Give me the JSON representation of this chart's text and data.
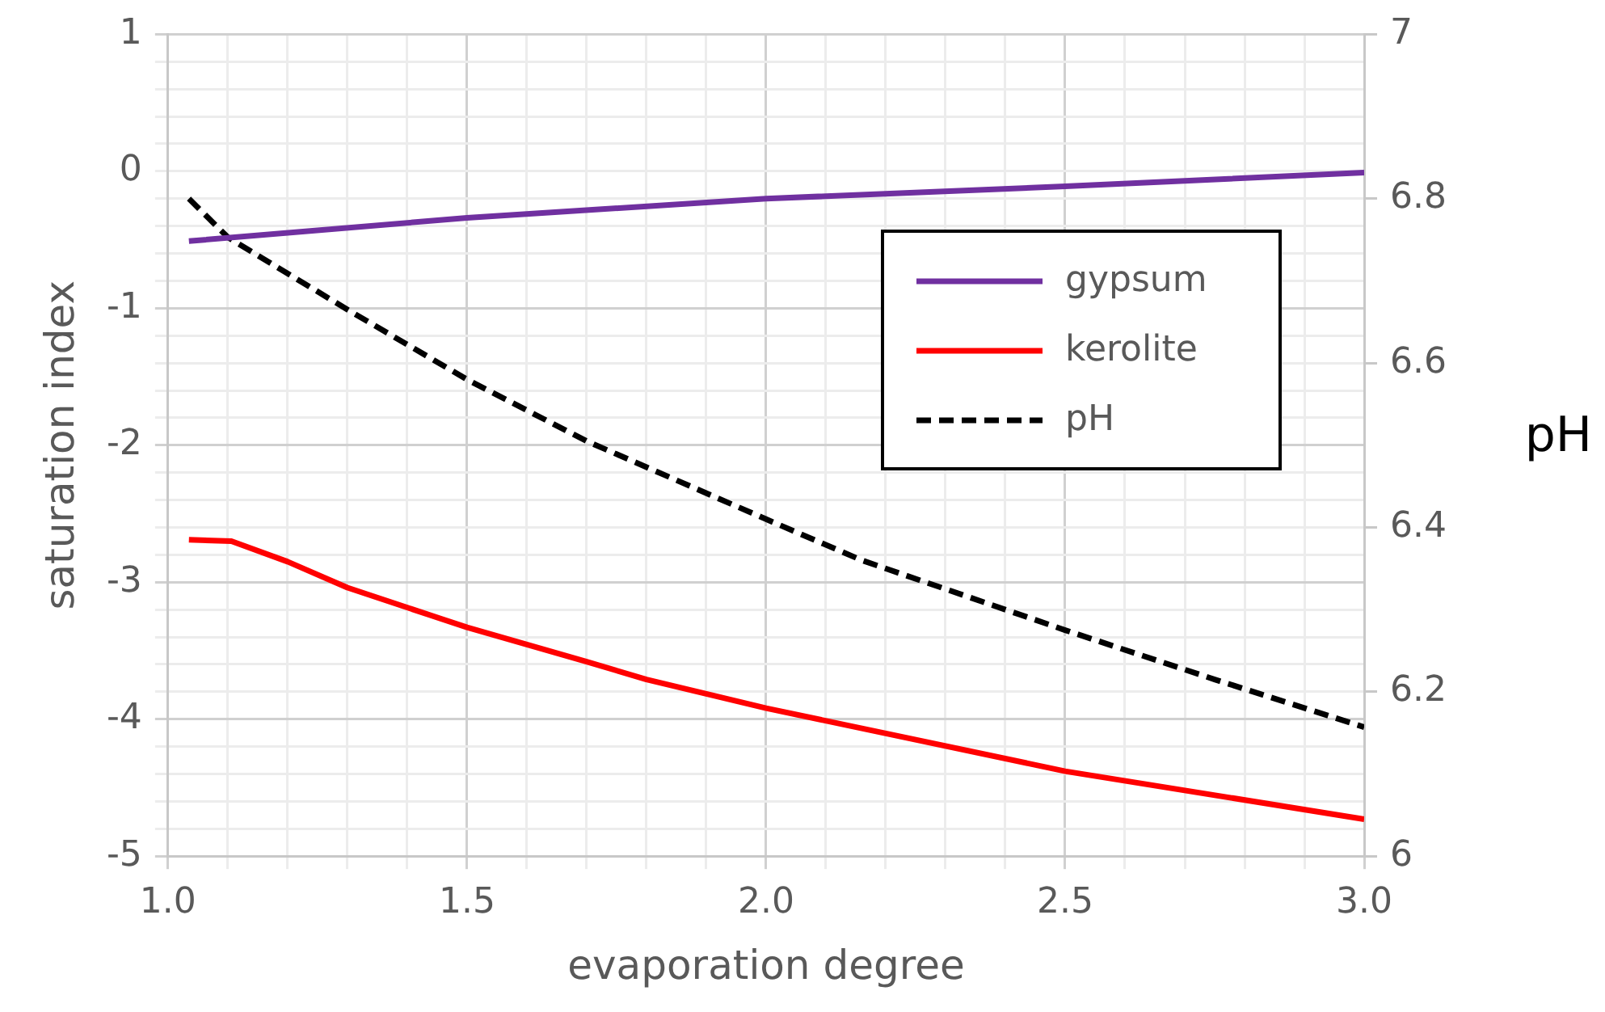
{
  "chart_data": {
    "type": "line",
    "xlabel": "evaporation degree",
    "ylabel": "saturation index",
    "y2label": "pH",
    "xlim": [
      1.0,
      3.0
    ],
    "xticks": [
      {
        "value": 1.0,
        "label": "1.0"
      },
      {
        "value": 1.1,
        "label": null
      },
      {
        "value": 1.2,
        "label": null
      },
      {
        "value": 1.3,
        "label": null
      },
      {
        "value": 1.4,
        "label": null
      },
      {
        "value": 1.5,
        "label": "1.5"
      },
      {
        "value": 1.6,
        "label": null
      },
      {
        "value": 1.7,
        "label": null
      },
      {
        "value": 1.8,
        "label": null
      },
      {
        "value": 1.9,
        "label": null
      },
      {
        "value": 2.0,
        "label": "2.0"
      },
      {
        "value": 2.1,
        "label": null
      },
      {
        "value": 2.2,
        "label": null
      },
      {
        "value": 2.3,
        "label": null
      },
      {
        "value": 2.4,
        "label": null
      },
      {
        "value": 2.5,
        "label": "2.5"
      },
      {
        "value": 2.6,
        "label": null
      },
      {
        "value": 2.7,
        "label": null
      },
      {
        "value": 2.8,
        "label": null
      },
      {
        "value": 2.9,
        "label": null
      },
      {
        "value": 3.0,
        "label": "3.0"
      }
    ],
    "ylim": [
      -5,
      1
    ],
    "yticks": [
      -5,
      {
        "value": -4.8,
        "label": null
      },
      {
        "value": -4.6,
        "label": null
      },
      {
        "value": -4.4,
        "label": null
      },
      {
        "value": -4.2,
        "label": null
      },
      -4,
      {
        "value": -3.8,
        "label": null
      },
      {
        "value": -3.6,
        "label": null
      },
      {
        "value": -3.4,
        "label": null
      },
      {
        "value": -3.2,
        "label": null
      },
      -3,
      {
        "value": -2.8,
        "label": null
      },
      {
        "value": -2.6,
        "label": null
      },
      {
        "value": -2.4,
        "label": null
      },
      {
        "value": -2.2,
        "label": null
      },
      -2,
      {
        "value": -1.8,
        "label": null
      },
      {
        "value": -1.6,
        "label": null
      },
      {
        "value": -1.4,
        "label": null
      },
      {
        "value": -1.2,
        "label": null
      },
      -1,
      {
        "value": -0.8,
        "label": null
      },
      {
        "value": -0.6,
        "label": null
      },
      {
        "value": -0.4,
        "label": null
      },
      {
        "value": -0.2,
        "label": null
      },
      0,
      {
        "value": 0.2,
        "label": null
      },
      {
        "value": 0.4,
        "label": null
      },
      {
        "value": 0.6,
        "label": null
      },
      {
        "value": 0.8,
        "label": null
      },
      1
    ],
    "y2lim": [
      6,
      7
    ],
    "y2ticks": [
      6,
      6.2,
      6.4,
      6.6,
      6.8,
      7
    ],
    "grid": true,
    "legend": "right",
    "series": [
      {
        "name": "gypsum",
        "color": "#7030a0",
        "line_style": "solid",
        "x": [
          1.035,
          1.5,
          2.0,
          2.5,
          3.0
        ],
        "values": [
          -0.51,
          -0.34,
          -0.2,
          -0.11,
          -0.01
        ]
      },
      {
        "name": "kerolite",
        "color": "#ff0000",
        "line_style": "solid",
        "x": [
          1.035,
          1.106,
          1.2,
          1.3,
          1.5,
          1.7,
          1.8,
          2.0,
          2.5,
          3.0
        ],
        "values": [
          -2.69,
          -2.7,
          -2.85,
          -3.04,
          -3.33,
          -3.58,
          -3.71,
          -3.92,
          -4.38,
          -4.73
        ]
      },
      {
        "name": "pH",
        "color": "#000000",
        "line_style": "dashed",
        "axis": "y2",
        "x": [
          1.035,
          1.1,
          1.3,
          1.5,
          1.7,
          2.0,
          2.16,
          2.5,
          2.75,
          3.0
        ],
        "values": [
          6.8,
          6.753,
          6.665,
          6.58,
          6.505,
          6.41,
          6.36,
          6.275,
          6.215,
          6.157
        ]
      }
    ]
  }
}
